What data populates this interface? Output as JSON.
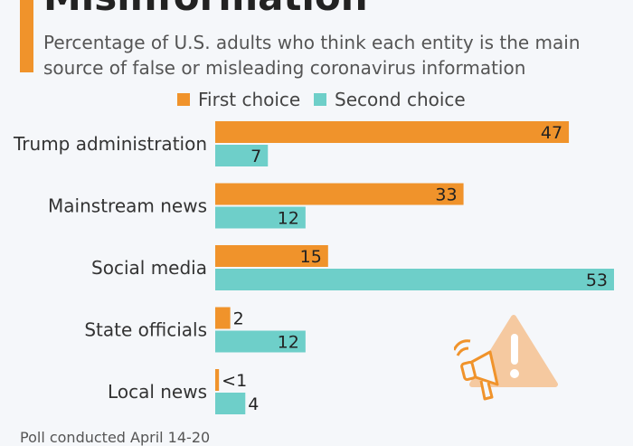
{
  "header": {
    "title": "Misinformation",
    "subtitle": "Percentage of U.S. adults who think each entity is the main source of false or misleading coronavirus information"
  },
  "colors": {
    "first": "#f0932b",
    "second": "#6ecfc9",
    "accent": "#f0932b",
    "icon": "#f5c9a0"
  },
  "chart_data": {
    "type": "bar",
    "orientation": "horizontal",
    "categories": [
      "Trump administration",
      "Mainstream news",
      "Social media",
      "State officials",
      "Local news"
    ],
    "series": [
      {
        "name": "First choice",
        "values": [
          47,
          33,
          15,
          2,
          0.5
        ],
        "labels": [
          "47",
          "33",
          "15",
          "2",
          "<1"
        ]
      },
      {
        "name": "Second choice",
        "values": [
          7,
          12,
          53,
          12,
          4
        ],
        "labels": [
          "7",
          "12",
          "53",
          "12",
          "4"
        ]
      }
    ],
    "xlim": [
      0,
      53
    ],
    "legend": "top",
    "grid": false
  },
  "footer": {
    "note": "Poll conducted April 14-20"
  },
  "decor": {
    "icon": "megaphone-warning-icon"
  }
}
